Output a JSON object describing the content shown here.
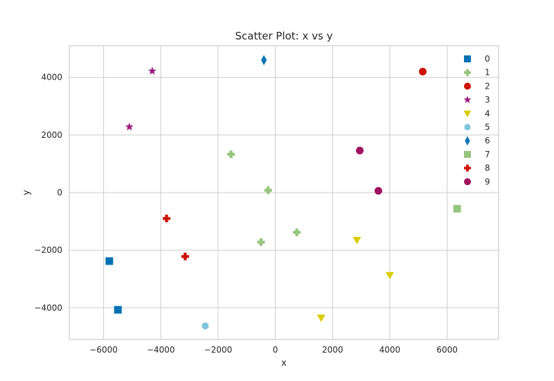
{
  "chart_data": {
    "type": "scatter",
    "title": "Scatter Plot: x vs y",
    "xlabel": "x",
    "ylabel": "y",
    "xlim": [
      -7200,
      7800
    ],
    "ylim": [
      -5100,
      5100
    ],
    "xticks": [
      -6000,
      -4000,
      -2000,
      0,
      2000,
      4000,
      6000
    ],
    "yticks": [
      -4000,
      -2000,
      0,
      2000,
      4000
    ],
    "grid": true,
    "legend_position": "top-right",
    "series": [
      {
        "name": "0",
        "marker": "square",
        "color": "#0072B2",
        "points": [
          [
            -5800,
            -2380
          ],
          [
            -5500,
            -4070
          ]
        ]
      },
      {
        "name": "1",
        "marker": "plus",
        "color": "#97C47E",
        "points": [
          [
            -1550,
            1330
          ],
          [
            -250,
            80
          ],
          [
            -500,
            -1720
          ],
          [
            750,
            -1380
          ]
        ]
      },
      {
        "name": "2",
        "marker": "circle",
        "color": "#CC1100",
        "points": [
          [
            5150,
            4200
          ]
        ]
      },
      {
        "name": "3",
        "marker": "star",
        "color": "#9A1C7E",
        "points": [
          [
            -4300,
            4220
          ],
          [
            -5100,
            2280
          ]
        ]
      },
      {
        "name": "4",
        "marker": "triangle-down",
        "color": "#D9CC00",
        "points": [
          [
            2850,
            -1650
          ],
          [
            4000,
            -2870
          ],
          [
            1600,
            -4350
          ]
        ]
      },
      {
        "name": "5",
        "marker": "hexagon",
        "color": "#7FC4DA",
        "points": [
          [
            -2450,
            -4630
          ]
        ]
      },
      {
        "name": "6",
        "marker": "diamond",
        "color": "#0E75B5",
        "points": [
          [
            -400,
            4600
          ]
        ]
      },
      {
        "name": "7",
        "marker": "square",
        "color": "#97C47E",
        "points": [
          [
            6350,
            -560
          ]
        ]
      },
      {
        "name": "8",
        "marker": "plus",
        "color": "#CC1100",
        "points": [
          [
            -3800,
            -900
          ],
          [
            -3150,
            -2220
          ]
        ]
      },
      {
        "name": "9",
        "marker": "circle",
        "color": "#A0115E",
        "points": [
          [
            2950,
            1460
          ],
          [
            3600,
            60
          ]
        ]
      }
    ]
  }
}
